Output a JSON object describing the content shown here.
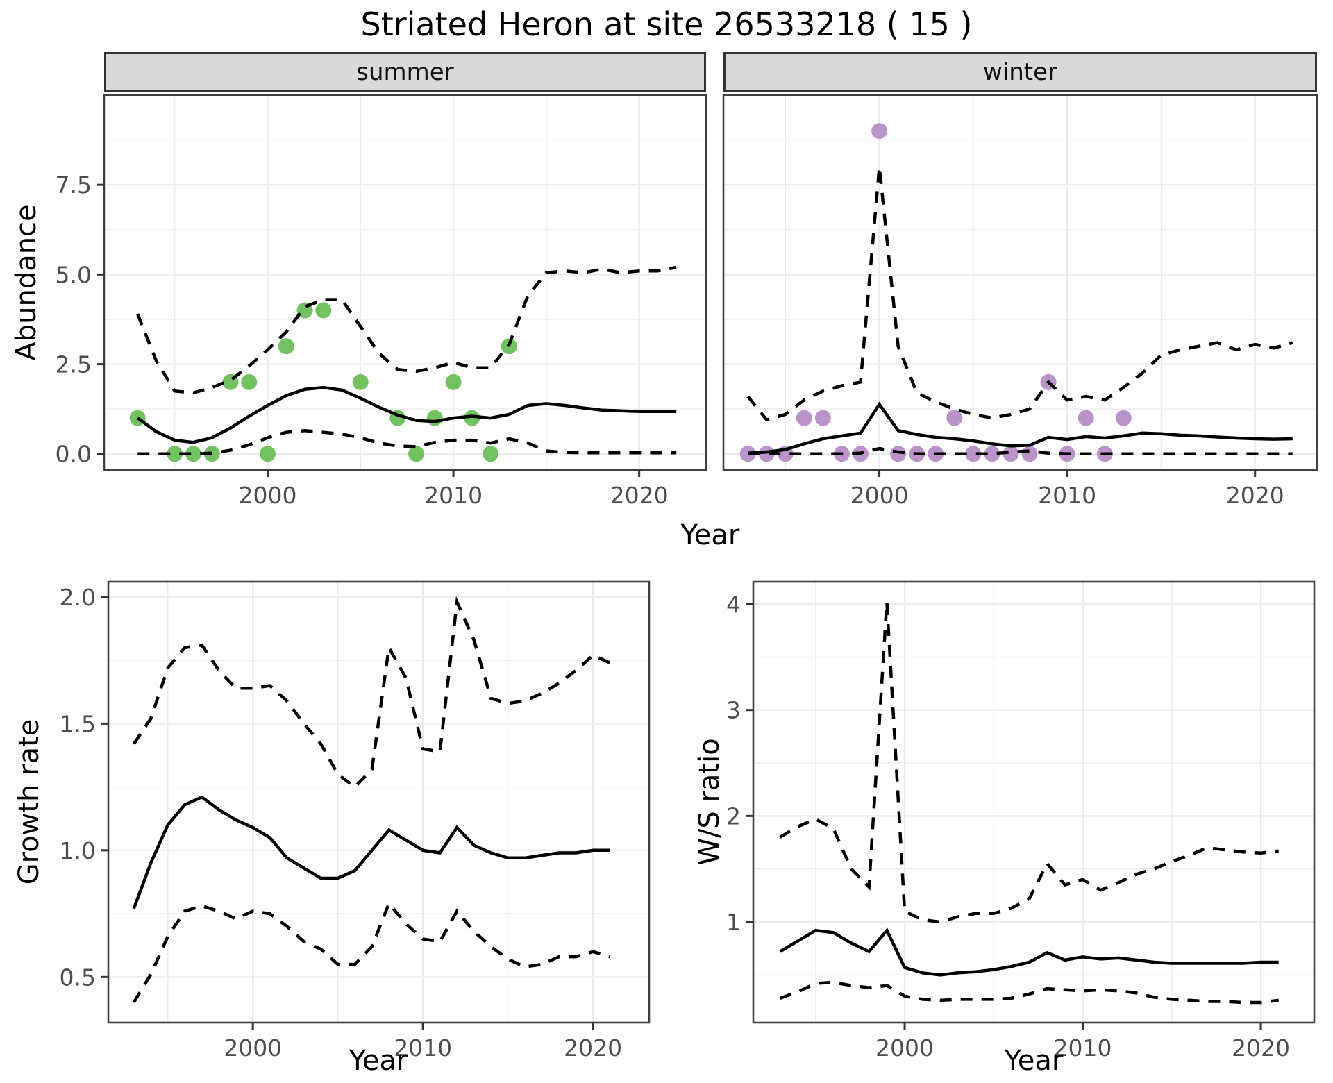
{
  "title": "Striated Heron at site 26533218 ( 15 )",
  "facets": [
    {
      "label": "summer"
    },
    {
      "label": "winter"
    }
  ],
  "axis_titles": {
    "abundance": "Abundance",
    "growth_rate": "Growth rate",
    "ws_ratio": "W/S ratio",
    "year_top": "Year",
    "year_growth": "Year",
    "year_ws": "Year"
  },
  "colors": {
    "summer_point": "#72c261",
    "winter_point": "#ba94c9",
    "line": "#000000",
    "grid": "#ebebeb",
    "panel_border": "#404040",
    "strip_bg": "#d9d9d9",
    "tick_label": "#4d4d4d",
    "tick_mark": "#333333"
  },
  "chart_data": [
    {
      "id": "abundance_summer",
      "type": "line",
      "facet": "summer",
      "ylabel": "Abundance",
      "xlabel": "Year",
      "xlim": [
        1991.2,
        2023.6
      ],
      "ylim": [
        -0.45,
        10.0
      ],
      "xticks": {
        "values": [
          2000,
          2010,
          2020
        ],
        "labels": [
          "2000",
          "2010",
          "2020"
        ],
        "minor": [
          1995,
          2005,
          2015
        ]
      },
      "yticks": {
        "values": [
          0,
          2.5,
          5,
          7.5
        ],
        "labels": [
          "0.0",
          "2.5",
          "5.0",
          "7.5"
        ],
        "minor": [
          1.25,
          3.75,
          6.25,
          8.75
        ]
      },
      "x": [
        1993,
        1994,
        1995,
        1996,
        1997,
        1998,
        1999,
        2000,
        2001,
        2002,
        2003,
        2004,
        2005,
        2006,
        2007,
        2008,
        2009,
        2010,
        2011,
        2012,
        2013,
        2014,
        2015,
        2016,
        2017,
        2018,
        2019,
        2020,
        2021,
        2022
      ],
      "series": [
        {
          "name": "mean",
          "style": "solid",
          "values": [
            1.0,
            0.62,
            0.38,
            0.32,
            0.45,
            0.72,
            1.05,
            1.35,
            1.62,
            1.8,
            1.85,
            1.78,
            1.55,
            1.3,
            1.08,
            0.93,
            0.9,
            1.0,
            1.05,
            1.0,
            1.1,
            1.35,
            1.4,
            1.35,
            1.28,
            1.22,
            1.2,
            1.18,
            1.18,
            1.18
          ]
        },
        {
          "name": "upper_ci",
          "style": "dashed",
          "values": [
            3.9,
            2.6,
            1.75,
            1.7,
            1.85,
            2.05,
            2.45,
            2.9,
            3.4,
            4.1,
            4.3,
            4.3,
            3.55,
            2.8,
            2.35,
            2.3,
            2.4,
            2.55,
            2.4,
            2.4,
            3.05,
            4.4,
            5.05,
            5.1,
            5.05,
            5.15,
            5.05,
            5.1,
            5.1,
            5.2
          ]
        },
        {
          "name": "lower_ci",
          "style": "dashed",
          "values": [
            0.0,
            0.0,
            0.0,
            0.0,
            0.02,
            0.1,
            0.25,
            0.45,
            0.6,
            0.65,
            0.6,
            0.55,
            0.45,
            0.3,
            0.22,
            0.2,
            0.32,
            0.38,
            0.38,
            0.3,
            0.42,
            0.3,
            0.08,
            0.04,
            0.03,
            0.03,
            0.03,
            0.03,
            0.03,
            0.03
          ]
        }
      ],
      "points": {
        "name": "observed-count",
        "color_key": "summer_point",
        "xy": [
          [
            1993,
            1
          ],
          [
            1995,
            0
          ],
          [
            1996,
            0
          ],
          [
            1997,
            0
          ],
          [
            1998,
            2
          ],
          [
            1999,
            2
          ],
          [
            2000,
            0
          ],
          [
            2001,
            3
          ],
          [
            2002,
            4
          ],
          [
            2003,
            4
          ],
          [
            2005,
            2
          ],
          [
            2007,
            1
          ],
          [
            2008,
            0
          ],
          [
            2009,
            1
          ],
          [
            2010,
            2
          ],
          [
            2011,
            1
          ],
          [
            2012,
            0
          ],
          [
            2013,
            3
          ]
        ]
      }
    },
    {
      "id": "abundance_winter",
      "type": "line",
      "facet": "winter",
      "ylabel": "Abundance",
      "xlabel": "Year",
      "xlim": [
        1991.7,
        2023.3
      ],
      "ylim": [
        -0.45,
        10.0
      ],
      "xticks": {
        "values": [
          2000,
          2010,
          2020
        ],
        "labels": [
          "2000",
          "2010",
          "2020"
        ],
        "minor": [
          1995,
          2005,
          2015
        ]
      },
      "yticks": {
        "values": [
          0,
          2.5,
          5,
          7.5
        ],
        "labels": [],
        "minor": [
          1.25,
          3.75,
          6.25,
          8.75
        ]
      },
      "x": [
        1993,
        1994,
        1995,
        1996,
        1997,
        1998,
        1999,
        2000,
        2001,
        2002,
        2003,
        2004,
        2005,
        2006,
        2007,
        2008,
        2009,
        2010,
        2011,
        2012,
        2013,
        2014,
        2015,
        2016,
        2017,
        2018,
        2019,
        2020,
        2021,
        2022
      ],
      "series": [
        {
          "name": "mean",
          "style": "solid",
          "values": [
            0.02,
            0.05,
            0.12,
            0.28,
            0.42,
            0.5,
            0.58,
            1.38,
            0.65,
            0.54,
            0.46,
            0.42,
            0.36,
            0.28,
            0.22,
            0.24,
            0.46,
            0.4,
            0.48,
            0.44,
            0.5,
            0.58,
            0.56,
            0.52,
            0.5,
            0.47,
            0.44,
            0.42,
            0.41,
            0.42
          ]
        },
        {
          "name": "upper_ci",
          "style": "dashed",
          "values": [
            1.6,
            0.95,
            1.1,
            1.5,
            1.75,
            1.9,
            2.0,
            8.0,
            3.0,
            1.7,
            1.45,
            1.25,
            1.1,
            1.0,
            1.1,
            1.25,
            2.0,
            1.5,
            1.6,
            1.5,
            1.85,
            2.25,
            2.75,
            2.9,
            3.0,
            3.1,
            2.9,
            3.05,
            2.95,
            3.1
          ]
        },
        {
          "name": "lower_ci",
          "style": "dashed",
          "values": [
            0,
            0,
            0,
            0,
            0,
            0,
            0.02,
            0.15,
            0.05,
            0,
            0,
            0,
            0,
            0,
            0.05,
            0.08,
            0.02,
            0,
            0,
            0,
            0,
            0,
            0,
            0,
            0,
            0,
            0,
            0,
            0,
            0
          ]
        }
      ],
      "points": {
        "name": "observed-count",
        "color_key": "winter_point",
        "xy": [
          [
            1993,
            0
          ],
          [
            1994,
            0
          ],
          [
            1995,
            0
          ],
          [
            1996,
            1
          ],
          [
            1997,
            1
          ],
          [
            1998,
            0
          ],
          [
            1999,
            0
          ],
          [
            2000,
            9
          ],
          [
            2001,
            0
          ],
          [
            2002,
            0
          ],
          [
            2003,
            0
          ],
          [
            2004,
            1
          ],
          [
            2005,
            0
          ],
          [
            2006,
            0
          ],
          [
            2007,
            0
          ],
          [
            2008,
            0
          ],
          [
            2009,
            2
          ],
          [
            2010,
            0
          ],
          [
            2011,
            1
          ],
          [
            2012,
            0
          ],
          [
            2013,
            1
          ]
        ]
      }
    },
    {
      "id": "growth_rate",
      "type": "line",
      "ylabel": "Growth rate",
      "xlabel": "Year",
      "xlim": [
        1991.5,
        2023.3
      ],
      "ylim": [
        0.32,
        2.06
      ],
      "xticks": {
        "values": [
          2000,
          2010,
          2020
        ],
        "labels": [
          "2000",
          "2010",
          "2020"
        ],
        "minor": [
          1995,
          2005,
          2015
        ]
      },
      "yticks": {
        "values": [
          0.5,
          1.0,
          1.5,
          2.0
        ],
        "labels": [
          "0.5",
          "1.0",
          "1.5",
          "2.0"
        ],
        "minor": [
          0.75,
          1.25,
          1.75
        ]
      },
      "x": [
        1993,
        1994,
        1995,
        1996,
        1997,
        1998,
        1999,
        2000,
        2001,
        2002,
        2003,
        2004,
        2005,
        2006,
        2007,
        2008,
        2009,
        2010,
        2011,
        2012,
        2013,
        2014,
        2015,
        2016,
        2017,
        2018,
        2019,
        2020,
        2021
      ],
      "series": [
        {
          "name": "mean",
          "style": "solid",
          "values": [
            0.77,
            0.95,
            1.1,
            1.18,
            1.21,
            1.16,
            1.12,
            1.09,
            1.05,
            0.97,
            0.93,
            0.89,
            0.89,
            0.92,
            1.0,
            1.08,
            1.04,
            1.0,
            0.99,
            1.09,
            1.02,
            0.99,
            0.97,
            0.97,
            0.98,
            0.99,
            0.99,
            1.0,
            1.0
          ]
        },
        {
          "name": "upper_ci",
          "style": "dashed",
          "values": [
            1.42,
            1.52,
            1.72,
            1.8,
            1.81,
            1.71,
            1.64,
            1.64,
            1.65,
            1.59,
            1.5,
            1.42,
            1.3,
            1.25,
            1.32,
            1.8,
            1.68,
            1.4,
            1.39,
            1.98,
            1.83,
            1.6,
            1.58,
            1.59,
            1.62,
            1.66,
            1.71,
            1.77,
            1.74
          ]
        },
        {
          "name": "lower_ci",
          "style": "dashed",
          "values": [
            0.4,
            0.51,
            0.66,
            0.76,
            0.78,
            0.76,
            0.73,
            0.76,
            0.75,
            0.7,
            0.64,
            0.61,
            0.55,
            0.55,
            0.62,
            0.79,
            0.71,
            0.65,
            0.64,
            0.76,
            0.68,
            0.62,
            0.57,
            0.54,
            0.55,
            0.58,
            0.58,
            0.6,
            0.58
          ]
        }
      ]
    },
    {
      "id": "ws_ratio",
      "type": "line",
      "ylabel": "W/S ratio",
      "xlabel": "Year",
      "xlim": [
        1991.5,
        2023.0
      ],
      "ylim": [
        0.05,
        4.21
      ],
      "xticks": {
        "values": [
          2000,
          2010,
          2020
        ],
        "labels": [
          "2000",
          "2010",
          "2020"
        ],
        "minor": [
          1995,
          2005,
          2015
        ]
      },
      "yticks": {
        "values": [
          1,
          2,
          3,
          4
        ],
        "labels": [
          "1",
          "2",
          "3",
          "4"
        ],
        "minor": [
          0.5,
          1.5,
          2.5,
          3.5
        ]
      },
      "x": [
        1993,
        1994,
        1995,
        1996,
        1997,
        1998,
        1999,
        2000,
        2001,
        2002,
        2003,
        2004,
        2005,
        2006,
        2007,
        2008,
        2009,
        2010,
        2011,
        2012,
        2013,
        2014,
        2015,
        2016,
        2017,
        2018,
        2019,
        2020,
        2021
      ],
      "series": [
        {
          "name": "mean",
          "style": "solid",
          "values": [
            0.72,
            0.82,
            0.92,
            0.9,
            0.8,
            0.72,
            0.92,
            0.57,
            0.52,
            0.5,
            0.52,
            0.53,
            0.55,
            0.58,
            0.62,
            0.71,
            0.64,
            0.67,
            0.65,
            0.66,
            0.64,
            0.62,
            0.61,
            0.61,
            0.61,
            0.61,
            0.61,
            0.62,
            0.62
          ]
        },
        {
          "name": "upper_ci",
          "style": "dashed",
          "values": [
            1.8,
            1.9,
            1.97,
            1.88,
            1.5,
            1.33,
            4.02,
            1.1,
            1.02,
            1.0,
            1.05,
            1.08,
            1.08,
            1.13,
            1.22,
            1.55,
            1.35,
            1.4,
            1.3,
            1.37,
            1.45,
            1.5,
            1.57,
            1.63,
            1.7,
            1.68,
            1.66,
            1.65,
            1.67
          ]
        },
        {
          "name": "lower_ci",
          "style": "dashed",
          "values": [
            0.28,
            0.34,
            0.42,
            0.43,
            0.4,
            0.38,
            0.4,
            0.3,
            0.27,
            0.26,
            0.27,
            0.27,
            0.27,
            0.28,
            0.32,
            0.37,
            0.36,
            0.35,
            0.36,
            0.35,
            0.33,
            0.29,
            0.27,
            0.26,
            0.25,
            0.25,
            0.24,
            0.24,
            0.26
          ]
        }
      ]
    }
  ]
}
